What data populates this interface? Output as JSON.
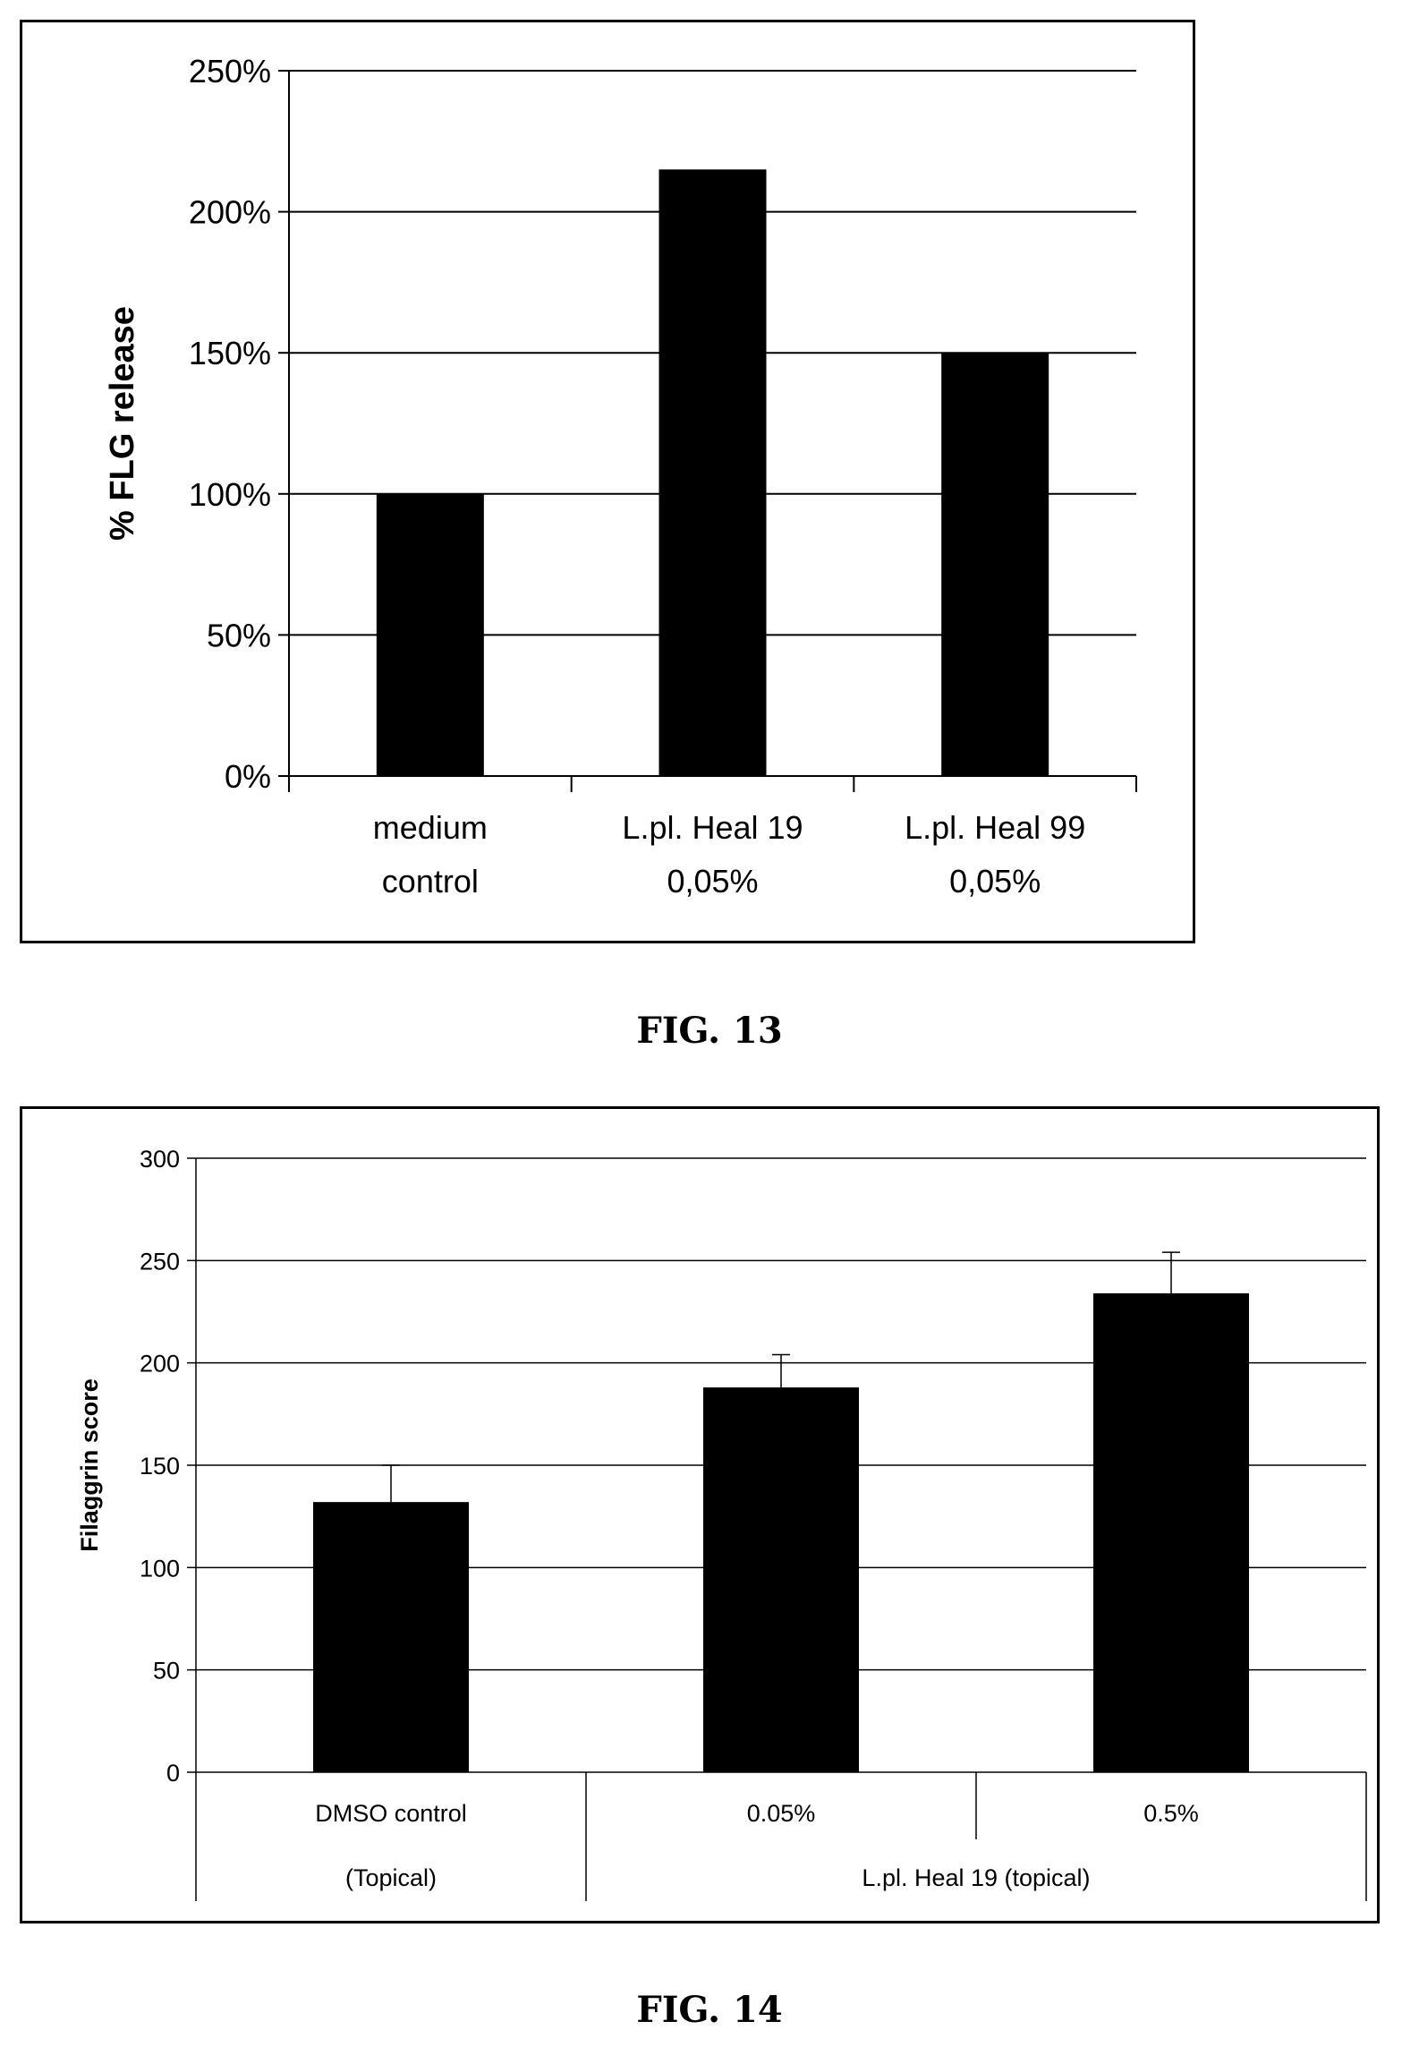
{
  "figures": {
    "fig13_caption": "FIG. 13",
    "fig14_caption": "FIG. 14"
  },
  "chart_data": [
    {
      "type": "bar",
      "figure": "FIG. 13",
      "ylabel": "% FLG release",
      "yticks": [
        "0%",
        "50%",
        "100%",
        "150%",
        "200%",
        "250%"
      ],
      "ylim": [
        0,
        250
      ],
      "categories": [
        [
          "medium",
          "control"
        ],
        [
          "L.pl. Heal 19",
          "0,05%"
        ],
        [
          "L.pl. Heal 99",
          "0,05%"
        ]
      ],
      "values": [
        100,
        215,
        150
      ],
      "grid": true,
      "bar_color": "#000000"
    },
    {
      "type": "bar",
      "figure": "FIG. 14",
      "ylabel": "Filaggrin score",
      "yticks": [
        "0",
        "50",
        "100",
        "150",
        "200",
        "250",
        "300"
      ],
      "ylim": [
        0,
        300
      ],
      "categories": [
        "DMSO control",
        "0.05%",
        "0.5%"
      ],
      "group_labels": [
        "(Topical)",
        "L.pl. Heal 19 (topical)"
      ],
      "values": [
        132,
        188,
        234
      ],
      "errors": [
        18,
        16,
        20
      ],
      "grid": true,
      "bar_color": "#000000"
    }
  ]
}
